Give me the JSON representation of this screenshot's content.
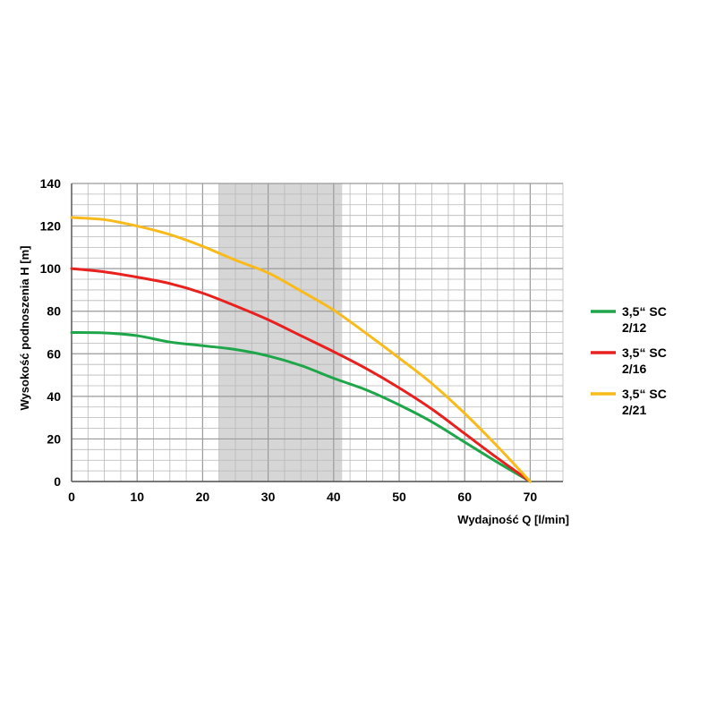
{
  "chart_data": {
    "type": "line",
    "title": "",
    "xlabel": "Wydajność Q [l/min]",
    "ylabel": "Wysokość podnoszenia H [m]",
    "xlim": [
      0,
      75
    ],
    "ylim": [
      0,
      140
    ],
    "x_ticks": [
      0,
      10,
      20,
      30,
      40,
      50,
      60,
      70
    ],
    "y_ticks": [
      0,
      20,
      40,
      60,
      80,
      100,
      120,
      140
    ],
    "grid": true,
    "legend_position": "right",
    "highlight_band": {
      "x_start": 22.5,
      "x_end": 41.3,
      "color": "#d6d6d6"
    },
    "series": [
      {
        "name_lines": [
          "3,5“ SC",
          "2/12"
        ],
        "color": "#1fa64a",
        "x": [
          0,
          5,
          10,
          15,
          20,
          25,
          30,
          35,
          40,
          45,
          50,
          55,
          60,
          65,
          70
        ],
        "y": [
          70,
          69.8,
          68.5,
          65.5,
          63.8,
          62,
          59,
          54.5,
          48.5,
          43,
          36,
          28,
          18.5,
          9,
          0
        ]
      },
      {
        "name_lines": [
          "3,5“ SC",
          "2/16"
        ],
        "color": "#e8201e",
        "x": [
          0,
          5,
          10,
          15,
          20,
          25,
          30,
          35,
          40,
          45,
          50,
          55,
          60,
          65,
          70
        ],
        "y": [
          100,
          98.5,
          96,
          93,
          88.5,
          82.5,
          76,
          68.5,
          61,
          53,
          44,
          34,
          22.5,
          11,
          0
        ]
      },
      {
        "name_lines": [
          "3,5“ SC",
          "2/21"
        ],
        "color": "#f9bb1b",
        "x": [
          0,
          5,
          10,
          15,
          20,
          25,
          30,
          35,
          40,
          45,
          50,
          55,
          60,
          65,
          70
        ],
        "y": [
          124,
          123,
          120,
          116,
          110.5,
          104,
          98,
          89.5,
          80.5,
          69.5,
          58,
          46,
          32,
          16.5,
          0
        ]
      }
    ]
  }
}
